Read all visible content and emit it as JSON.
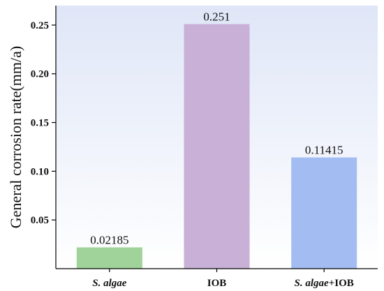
{
  "chart_data": {
    "type": "bar",
    "categories": [
      {
        "label": "S. algae",
        "parts": [
          {
            "text": "S. algae",
            "italic": true
          }
        ]
      },
      {
        "label": "IOB",
        "parts": [
          {
            "text": "IOB",
            "italic": false
          }
        ]
      },
      {
        "label": "S. algae+IOB",
        "parts": [
          {
            "text": "S. algae",
            "italic": true
          },
          {
            "text": "+IOB",
            "italic": false
          }
        ]
      }
    ],
    "values": [
      0.02185,
      0.251,
      0.11415
    ],
    "data_labels": [
      "0.02185",
      "0.251",
      "0.11415"
    ],
    "colors": [
      "#9fd39a",
      "#c8b0d6",
      "#a3bdf2"
    ],
    "ylabel": "General corrosion rate(mm/a)",
    "ylim": [
      0,
      0.27
    ],
    "yticks": [
      0.05,
      0.1,
      0.15,
      0.2,
      0.25
    ],
    "ytick_labels": [
      "0.05",
      "0.10",
      "0.15",
      "0.20",
      "0.25"
    ],
    "background_gradient": [
      "#dfe6f7",
      "#ffffff"
    ],
    "grid": false,
    "legend": "none"
  }
}
